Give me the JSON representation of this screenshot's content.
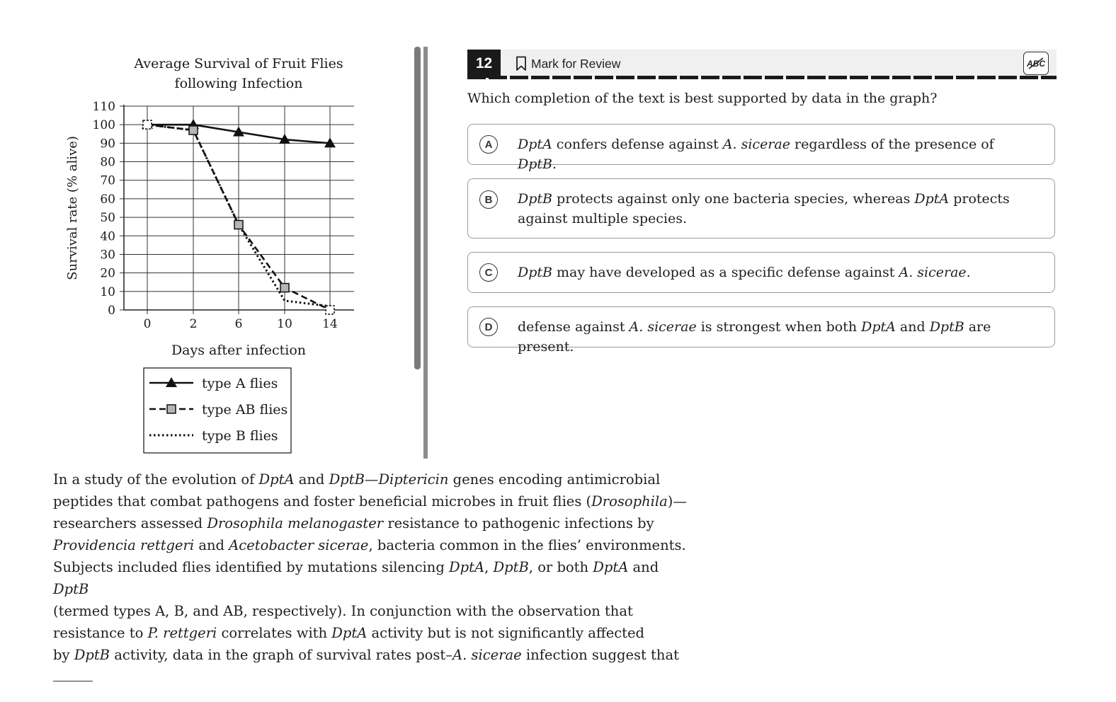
{
  "question": {
    "number": "12",
    "mark_label": "Mark for Review",
    "abc_label": "ABC",
    "prompt": "Which completion of the text is best supported by data in the graph?"
  },
  "choices": [
    {
      "letter": "A",
      "html": "<i>DptA</i> confers defense against <i>A. sicerae</i> regardless of the presence of <i>DptB</i>."
    },
    {
      "letter": "B",
      "html": "<i>DptB</i> protects against only one bacteria species, whereas <i>DptA</i> protects against multiple species."
    },
    {
      "letter": "C",
      "html": "<i>DptB</i> may have developed as a specific defense against <i>A. sicerae</i>."
    },
    {
      "letter": "D",
      "html": "defense against <i>A. sicerae</i> is strongest when both <i>DptA</i> and <i>DptB</i> are present."
    }
  ],
  "passage_html": "In a study of the evolution of <i>DptA</i> and <i>DptB</i>—<i>Diptericin</i> genes encoding antimicrobial<br>peptides that combat pathogens and foster beneficial microbes in fruit flies (<i>Drosophila</i>)—<br>researchers assessed <i>Drosophila melanogaster</i> resistance to pathogenic infections by<br><i>Providencia rettgeri</i> and <i>Acetobacter sicerae</i>, bacteria common in the flies’ environments.<br>Subjects included flies identified by mutations silencing <i>DptA</i>, <i>DptB</i>, or both <i>DptA</i> and <i>DptB</i><br>(termed types A, B, and AB, respectively). In conjunction with the observation that<br>resistance to <i>P. rettgeri</i> correlates with <i>DptA</i> activity but is not significantly affected<br>by <i>DptB</i> activity, data in the graph of survival rates post–<i>A. sicerae</i> infection suggest that",
  "chart_data": {
    "type": "line",
    "title": "Average Survival of Fruit Flies following Infection",
    "title_lines": [
      "Average Survival of Fruit Flies",
      "following Infection"
    ],
    "xlabel": "Days after infection",
    "ylabel": "Survival rate (% alive)",
    "x": [
      0,
      2,
      6,
      10,
      14
    ],
    "x_tick_labels": [
      "0",
      "2",
      "6",
      "10",
      "14"
    ],
    "y_ticks": [
      0,
      10,
      20,
      30,
      40,
      50,
      60,
      70,
      80,
      90,
      100,
      110
    ],
    "ylim": [
      0,
      110
    ],
    "grid": true,
    "legend_position": "below",
    "series": [
      {
        "name": "type A flies",
        "values": [
          100,
          100,
          96,
          92,
          90
        ],
        "line": "solid",
        "marker": "triangle"
      },
      {
        "name": "type AB flies",
        "values": [
          100,
          97,
          46,
          12,
          0
        ],
        "line": "dashed",
        "marker": "square"
      },
      {
        "name": "type B flies",
        "values": [
          100,
          97,
          46,
          5,
          2
        ],
        "line": "dotted",
        "marker": "none"
      }
    ]
  }
}
